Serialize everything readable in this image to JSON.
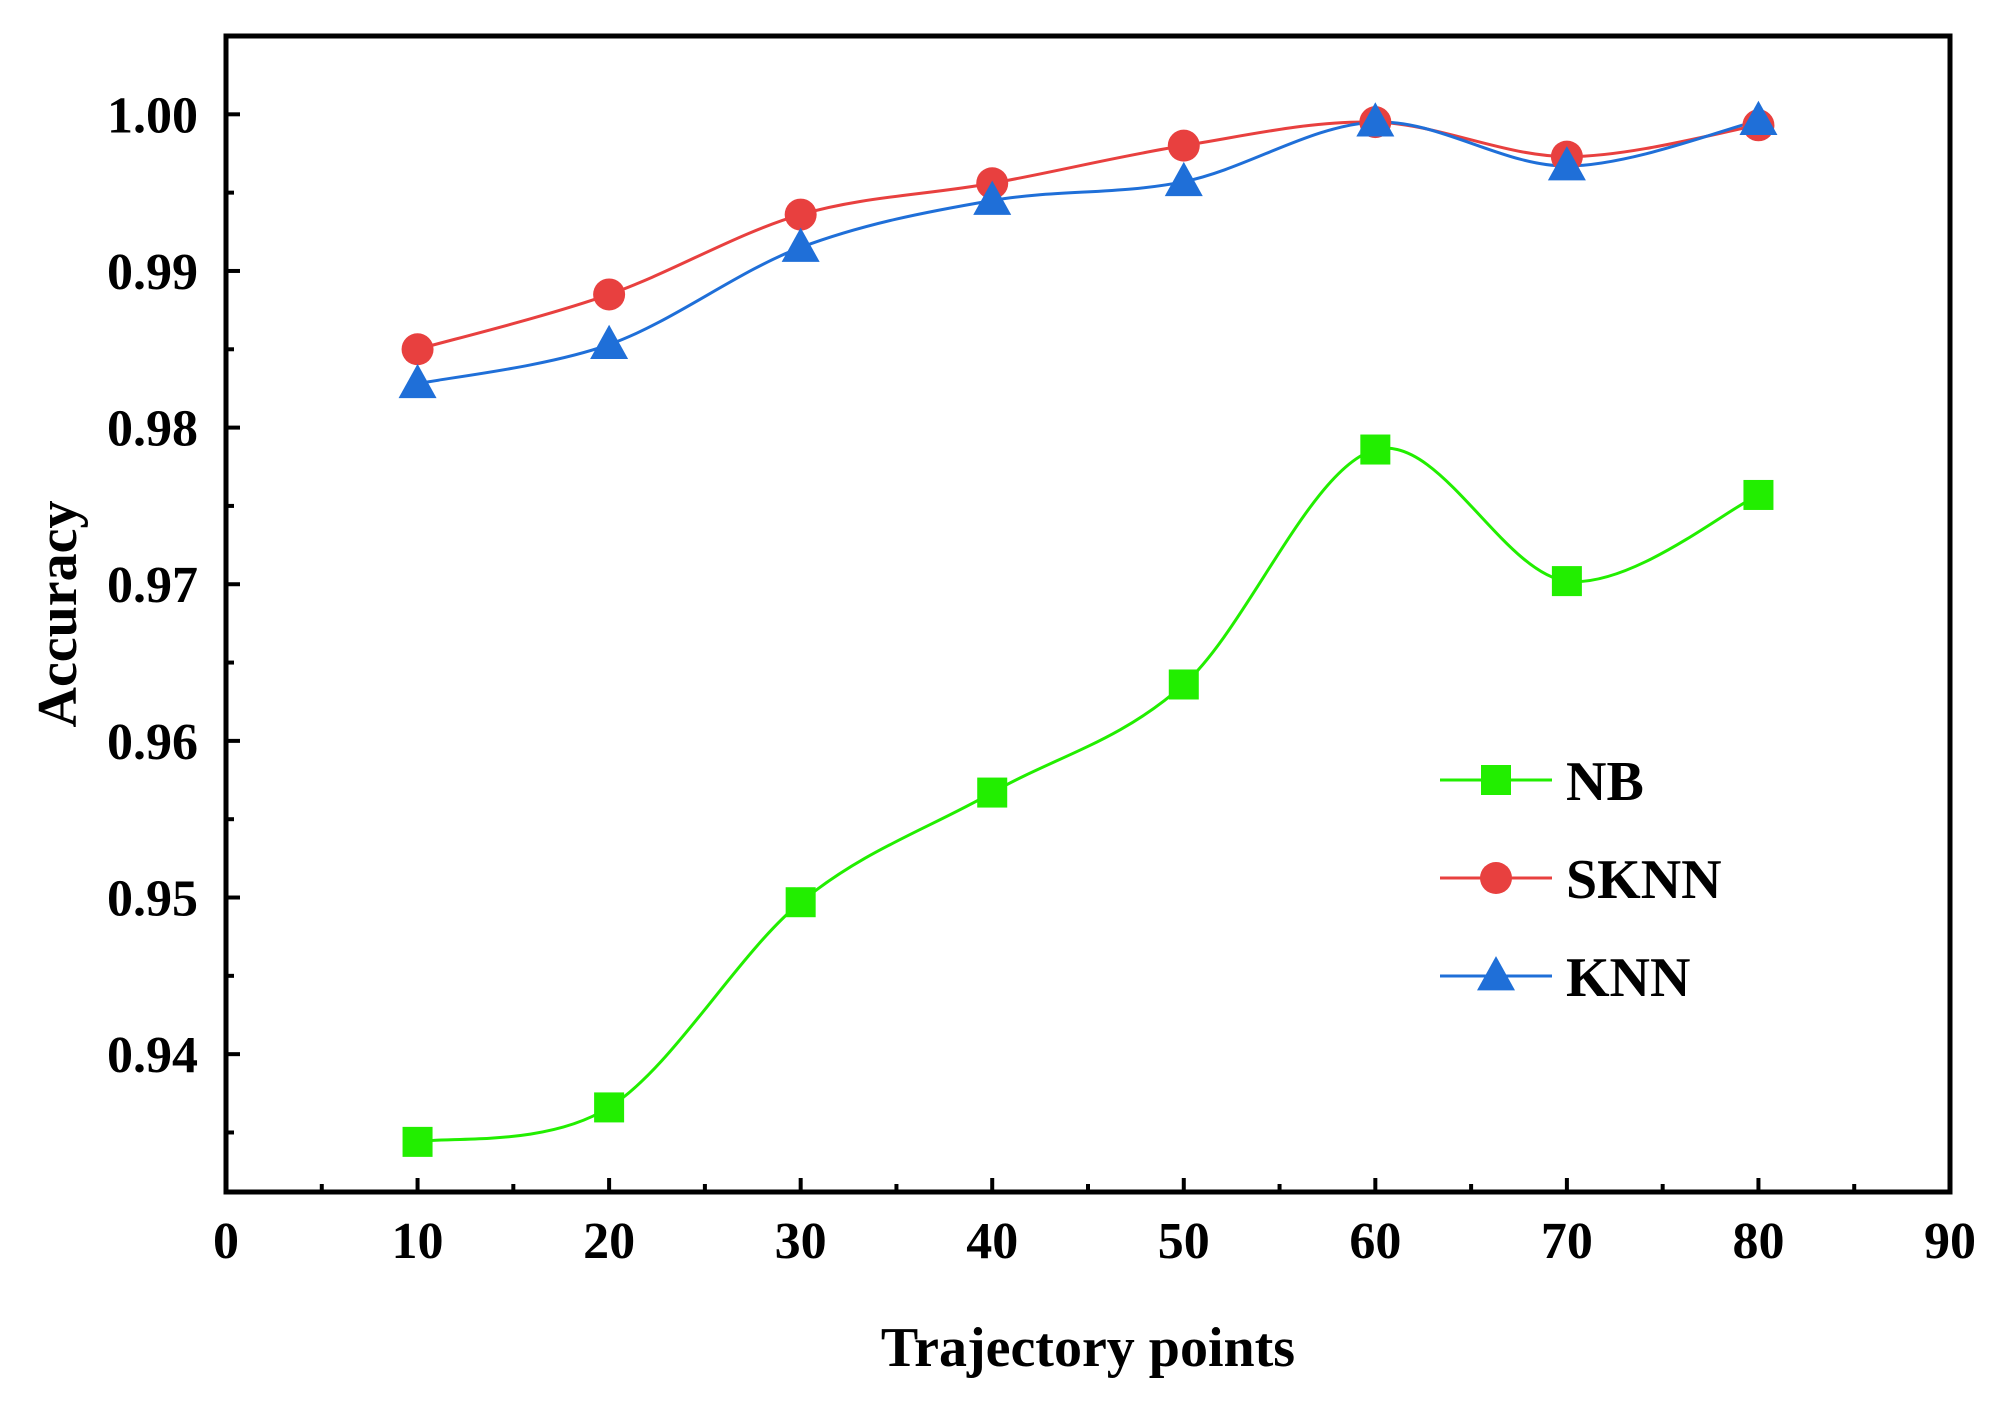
{
  "chart_data": {
    "type": "line",
    "title": "",
    "xlabel": "Trajectory points",
    "ylabel": "Accuracy",
    "xlim": [
      0,
      90
    ],
    "ylim": [
      0.9312,
      1.005
    ],
    "x_ticks": [
      0,
      10,
      20,
      30,
      40,
      50,
      60,
      70,
      80,
      90
    ],
    "y_ticks": [
      0.94,
      0.95,
      0.96,
      0.97,
      0.98,
      0.99,
      1.0
    ],
    "y_tick_labels": [
      "0.94",
      "0.95",
      "0.96",
      "0.97",
      "0.98",
      "0.99",
      "1.00"
    ],
    "grid": false,
    "legend_position": "center-right",
    "x": [
      10,
      20,
      30,
      40,
      50,
      60,
      70,
      80
    ],
    "series": [
      {
        "name": "NB",
        "marker": "square",
        "color": "#22ee00",
        "values": [
          0.9344,
          0.9366,
          0.9497,
          0.9567,
          0.9636,
          0.9786,
          0.9702,
          0.9757
        ]
      },
      {
        "name": "SKNN",
        "marker": "circle",
        "color": "#e8403f",
        "values": [
          0.985,
          0.9885,
          0.9936,
          0.9956,
          0.998,
          0.9995,
          0.9973,
          0.9993
        ]
      },
      {
        "name": "KNN",
        "marker": "triangle",
        "color": "#1f6fd8",
        "values": [
          0.9828,
          0.9853,
          0.9915,
          0.9945,
          0.9957,
          0.9995,
          0.9967,
          0.9996
        ]
      }
    ]
  }
}
